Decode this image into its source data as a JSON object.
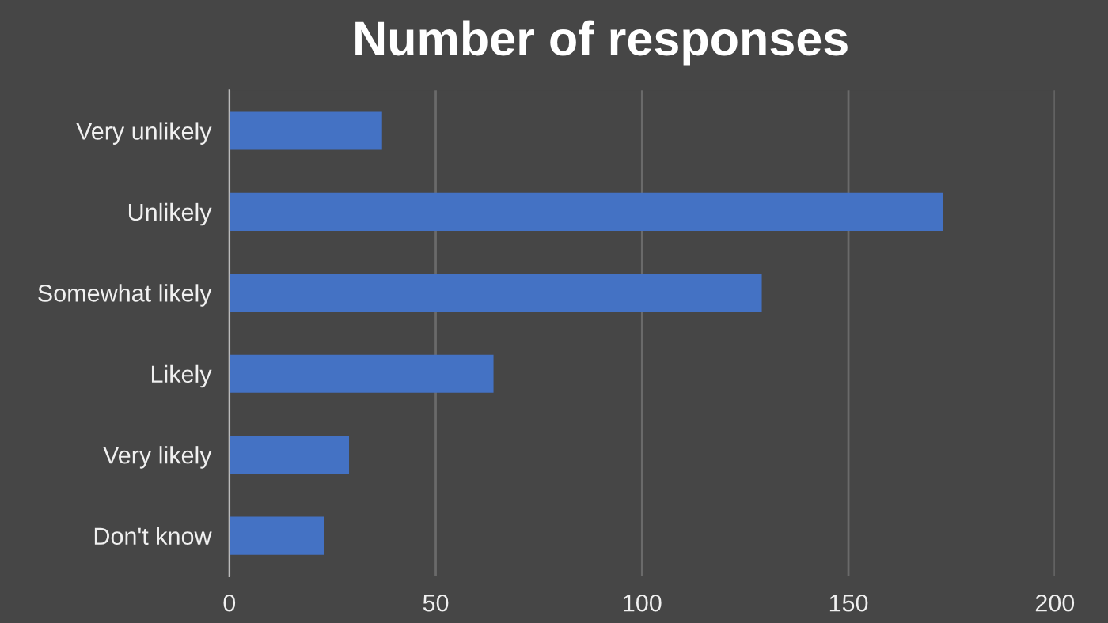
{
  "chart_data": {
    "type": "bar",
    "orientation": "horizontal",
    "title": "Number of responses",
    "categories": [
      "Very unlikely",
      "Unlikely",
      "Somewhat likely",
      "Likely",
      "Very likely",
      "Don't know"
    ],
    "values": [
      37,
      173,
      129,
      64,
      29,
      23
    ],
    "color": "#4472c4",
    "xlim": [
      0,
      200
    ],
    "xticks": [
      0,
      50,
      100,
      150,
      200
    ],
    "grid": "x"
  }
}
